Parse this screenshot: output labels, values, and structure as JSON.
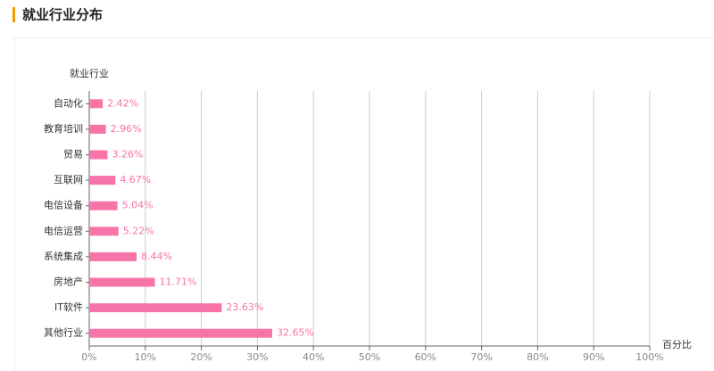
{
  "chart_data": {
    "type": "barh",
    "title": "就业行业分布",
    "y_label": "就业行业",
    "x_label": "百分比",
    "categories": [
      "自动化",
      "教育培训",
      "贸易",
      "互联网",
      "电信设备",
      "电信运营",
      "系统集成",
      "房地产",
      "IT软件",
      "其他行业"
    ],
    "values": [
      2.42,
      2.96,
      3.26,
      4.67,
      5.04,
      5.22,
      8.44,
      11.71,
      23.63,
      32.65
    ],
    "value_labels": [
      "2.42%",
      "2.96%",
      "3.26%",
      "4.67%",
      "5.04%",
      "5.22%",
      "8.44%",
      "11.71%",
      "23.63%",
      "32.65%"
    ],
    "color": "#f774a8",
    "xlim": [
      0,
      100
    ],
    "xticks": [
      {
        "value": 0,
        "label": "0%"
      },
      {
        "value": 10,
        "label": "10%"
      },
      {
        "value": 20,
        "label": "20%"
      },
      {
        "value": 30,
        "label": "30%"
      },
      {
        "value": 40,
        "label": "40%"
      },
      {
        "value": 50,
        "label": "50%"
      },
      {
        "value": 60,
        "label": "60%"
      },
      {
        "value": 70,
        "label": "70%"
      },
      {
        "value": 80,
        "label": "80%"
      },
      {
        "value": 90,
        "label": "90%"
      },
      {
        "value": 100,
        "label": "100%"
      }
    ],
    "grid": true
  }
}
